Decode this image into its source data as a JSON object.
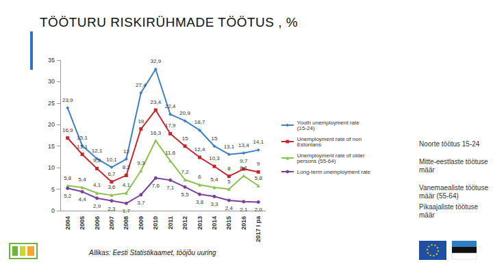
{
  "chart_data": {
    "type": "line",
    "title": "TÖÖTURU RISKIRÜHMADE TÖÖTUS , %",
    "categories": [
      "2004",
      "2005",
      "2006",
      "2007",
      "2008",
      "2009",
      "2010",
      "2011",
      "2012",
      "2013",
      "2014",
      "2015",
      "2016",
      "2017 I pa"
    ],
    "series": [
      {
        "name": "Youth unemployment rate (15-24)",
        "color": "#3f7fc4",
        "marker": "diamond",
        "values": [
          23.9,
          15.1,
          12.1,
          10.1,
          12,
          27.4,
          32.9,
          22.4,
          20.9,
          18.7,
          15,
          13.1,
          13.4,
          14.1
        ],
        "value_labels": [
          "23,9",
          "15,1",
          "12,1",
          "10,1",
          "12",
          "27,4",
          "32,9",
          "22,4",
          "20,9",
          "18,7",
          "15",
          "13,1",
          "13,4",
          "14,1"
        ]
      },
      {
        "name": "Unemployment rate of non Estonians",
        "color": "#c0282e",
        "marker": "square",
        "values": [
          16.9,
          13.1,
          9.8,
          6.7,
          8.2,
          19,
          23.4,
          17.9,
          15,
          12.4,
          10.3,
          8,
          9.7,
          9
        ],
        "value_labels": [
          "16,9",
          "13,1",
          "9,8",
          "6,7",
          "8,2",
          "19",
          "23,4",
          "17,9",
          "15",
          "12,4",
          "10,3",
          "8",
          "9,7",
          "9"
        ]
      },
      {
        "name": "Unemployment rate of older persons (55-64)",
        "color": "#8cc152",
        "marker": "triangle",
        "values": [
          5.8,
          5.4,
          4.1,
          3.6,
          4.1,
          9.3,
          16.3,
          11.6,
          7.2,
          6,
          5.4,
          5,
          8.1,
          5.8
        ],
        "value_labels": [
          "5,8",
          "5,4",
          "4,1",
          "3,6",
          "4,1",
          "9,3",
          "16,3",
          "11,6",
          "7,2",
          "6",
          "5,4",
          "5",
          "8,1",
          "5,8"
        ]
      },
      {
        "name": "Long-term unemployment rate",
        "color": "#7b3f9e",
        "marker": "circle",
        "values": [
          5.2,
          4.4,
          2.9,
          2.3,
          1.7,
          3.7,
          7.6,
          7.1,
          5.5,
          3.8,
          3.3,
          2.4,
          2.1,
          2.0
        ],
        "value_labels": [
          "5,2",
          "4,4",
          "2,9",
          "2,3",
          "1,7",
          "3,7",
          "7,6",
          "7,1",
          "5,5",
          "3,8",
          "3,3",
          "2,4",
          "2,1",
          "2,0"
        ]
      }
    ],
    "ylim": [
      0,
      35
    ],
    "yticks": [
      0,
      5,
      10,
      15,
      20,
      25,
      30,
      35
    ],
    "grid": false,
    "legend": "right",
    "data_labels": true,
    "annotations": [
      "Noorte töötus 15-24",
      "Mitte-eestlaste töötuse määr",
      "Vanemaealiste töötuse määr (55-64)",
      "Pikaajaliste töötuse määr",
      "Allikas: Eesti Statistikaamet, tööjõu uuring"
    ]
  }
}
